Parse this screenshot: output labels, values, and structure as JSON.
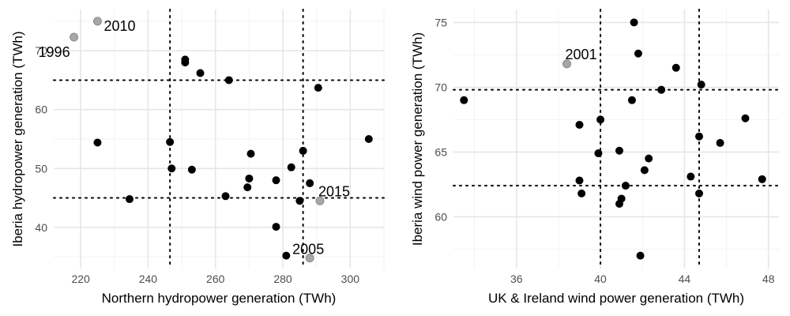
{
  "chart_data": [
    {
      "type": "scatter",
      "xlabel": "Northern hydropower generation (TWh)",
      "ylabel": "Iberia hydropower generation (TWh)",
      "xlim": [
        212,
        310
      ],
      "ylim": [
        33,
        77
      ],
      "xticks": [
        220,
        240,
        260,
        280,
        300
      ],
      "yticks": [
        40,
        50,
        60,
        70
      ],
      "grid": true,
      "ref_lines": {
        "x": [
          246.5,
          286.0
        ],
        "y": [
          45.0,
          65.0
        ]
      },
      "colors": {
        "point": "#000000",
        "highlight": "#a6a6a6"
      },
      "points": [
        {
          "x": 218.0,
          "y": 72.3,
          "highlight": true,
          "label": "1996"
        },
        {
          "x": 225.0,
          "y": 75.0,
          "highlight": true,
          "label": "2010"
        },
        {
          "x": 225.0,
          "y": 54.4
        },
        {
          "x": 234.5,
          "y": 44.8
        },
        {
          "x": 246.5,
          "y": 54.5
        },
        {
          "x": 247.0,
          "y": 50.0
        },
        {
          "x": 251.0,
          "y": 68.5
        },
        {
          "x": 251.0,
          "y": 68.0
        },
        {
          "x": 253.0,
          "y": 49.8
        },
        {
          "x": 255.5,
          "y": 66.2
        },
        {
          "x": 263.0,
          "y": 45.3
        },
        {
          "x": 264.0,
          "y": 65.0
        },
        {
          "x": 269.5,
          "y": 46.8
        },
        {
          "x": 270.0,
          "y": 48.3
        },
        {
          "x": 270.5,
          "y": 52.5
        },
        {
          "x": 278.0,
          "y": 48.0
        },
        {
          "x": 278.0,
          "y": 40.1
        },
        {
          "x": 281.0,
          "y": 35.2
        },
        {
          "x": 282.5,
          "y": 50.2
        },
        {
          "x": 285.0,
          "y": 44.5
        },
        {
          "x": 286.0,
          "y": 53.0
        },
        {
          "x": 288.0,
          "y": 34.8,
          "highlight": true,
          "label": "2005"
        },
        {
          "x": 288.0,
          "y": 47.5
        },
        {
          "x": 290.5,
          "y": 63.7
        },
        {
          "x": 291.0,
          "y": 44.5,
          "highlight": true,
          "label": "2015"
        },
        {
          "x": 305.5,
          "y": 55.0
        }
      ]
    },
    {
      "type": "scatter",
      "xlabel": "UK & Ireland wind power generation (TWh)",
      "ylabel": "Iberia wind power generation (TWh)",
      "xlim": [
        33.0,
        48.5
      ],
      "ylim": [
        56.0,
        76.0
      ],
      "xticks": [
        36,
        40,
        44,
        48
      ],
      "yticks": [
        60,
        65,
        70,
        75
      ],
      "grid": true,
      "ref_lines": {
        "x": [
          40.0,
          44.7
        ],
        "y": [
          62.4,
          69.8
        ]
      },
      "colors": {
        "point": "#000000",
        "highlight": "#a6a6a6"
      },
      "points": [
        {
          "x": 33.5,
          "y": 69.0
        },
        {
          "x": 38.4,
          "y": 71.8,
          "highlight": true,
          "label": "2001"
        },
        {
          "x": 39.0,
          "y": 67.1
        },
        {
          "x": 39.0,
          "y": 62.8
        },
        {
          "x": 39.1,
          "y": 61.8
        },
        {
          "x": 39.9,
          "y": 64.9
        },
        {
          "x": 40.0,
          "y": 67.5
        },
        {
          "x": 40.9,
          "y": 65.1
        },
        {
          "x": 40.9,
          "y": 61.0
        },
        {
          "x": 41.0,
          "y": 61.4
        },
        {
          "x": 41.2,
          "y": 62.4
        },
        {
          "x": 41.5,
          "y": 69.0
        },
        {
          "x": 41.6,
          "y": 75.0
        },
        {
          "x": 41.8,
          "y": 72.6
        },
        {
          "x": 41.9,
          "y": 57.0
        },
        {
          "x": 42.1,
          "y": 63.6
        },
        {
          "x": 42.3,
          "y": 64.5
        },
        {
          "x": 42.9,
          "y": 69.8
        },
        {
          "x": 43.6,
          "y": 71.5
        },
        {
          "x": 44.3,
          "y": 63.1
        },
        {
          "x": 44.7,
          "y": 66.2
        },
        {
          "x": 44.7,
          "y": 61.8
        },
        {
          "x": 44.8,
          "y": 70.2
        },
        {
          "x": 45.7,
          "y": 65.7
        },
        {
          "x": 46.9,
          "y": 67.6
        },
        {
          "x": 47.7,
          "y": 62.9
        }
      ]
    }
  ]
}
